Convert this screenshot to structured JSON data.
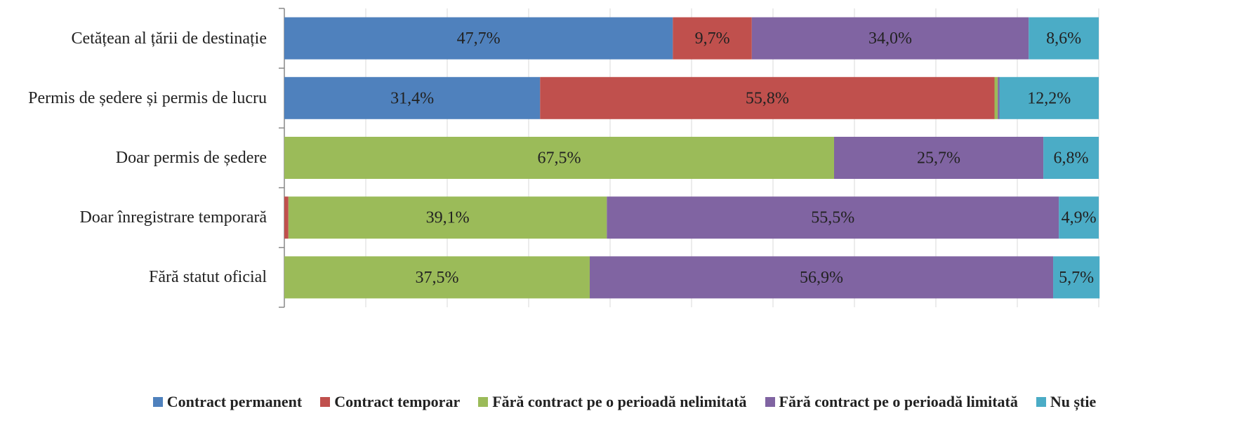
{
  "chart_data": {
    "type": "stacked_barh",
    "categories": [
      "Cetățean al țării de destinație",
      "Permis de ședere și permis de lucru",
      "Doar permis de ședere",
      "Doar înregistrare temporară",
      "Fără statut oficial"
    ],
    "series": [
      {
        "name": "Contract permanent",
        "color": "#4f81bd",
        "values": [
          47.7,
          31.4,
          null,
          null,
          null
        ],
        "value_labels": [
          "47,7%",
          "31,4%",
          null,
          null,
          null
        ]
      },
      {
        "name": "Contract temporar",
        "color": "#c0504d",
        "values": [
          9.7,
          55.8,
          null,
          0.5,
          null
        ],
        "value_labels": [
          "9,7%",
          "55,8%",
          null,
          null,
          null
        ]
      },
      {
        "name": "Fără contract pe o perioadă nelimitată",
        "color": "#9bbb59",
        "values": [
          null,
          0.4,
          67.5,
          39.1,
          37.5
        ],
        "value_labels": [
          null,
          null,
          "67,5%",
          "39,1%",
          "37,5%"
        ]
      },
      {
        "name": "Fără contract pe o perioadă limitată",
        "color": "#8064a2",
        "values": [
          34.0,
          0.2,
          25.7,
          55.5,
          56.9
        ],
        "value_labels": [
          "34,0%",
          null,
          "25,7%",
          "55,5%",
          "56,9%"
        ]
      },
      {
        "name": "Nu știe",
        "color": "#4bacc6",
        "values": [
          8.6,
          12.2,
          6.8,
          4.9,
          5.7
        ],
        "value_labels": [
          "8,6%",
          "12,2%",
          "6,8%",
          "4,9%",
          "5,7%"
        ]
      }
    ],
    "xlim": [
      0,
      100
    ],
    "xticks": [
      0,
      10,
      20,
      30,
      40,
      50,
      60,
      70,
      80,
      90,
      100
    ],
    "grid": true,
    "legend": "bottom"
  }
}
